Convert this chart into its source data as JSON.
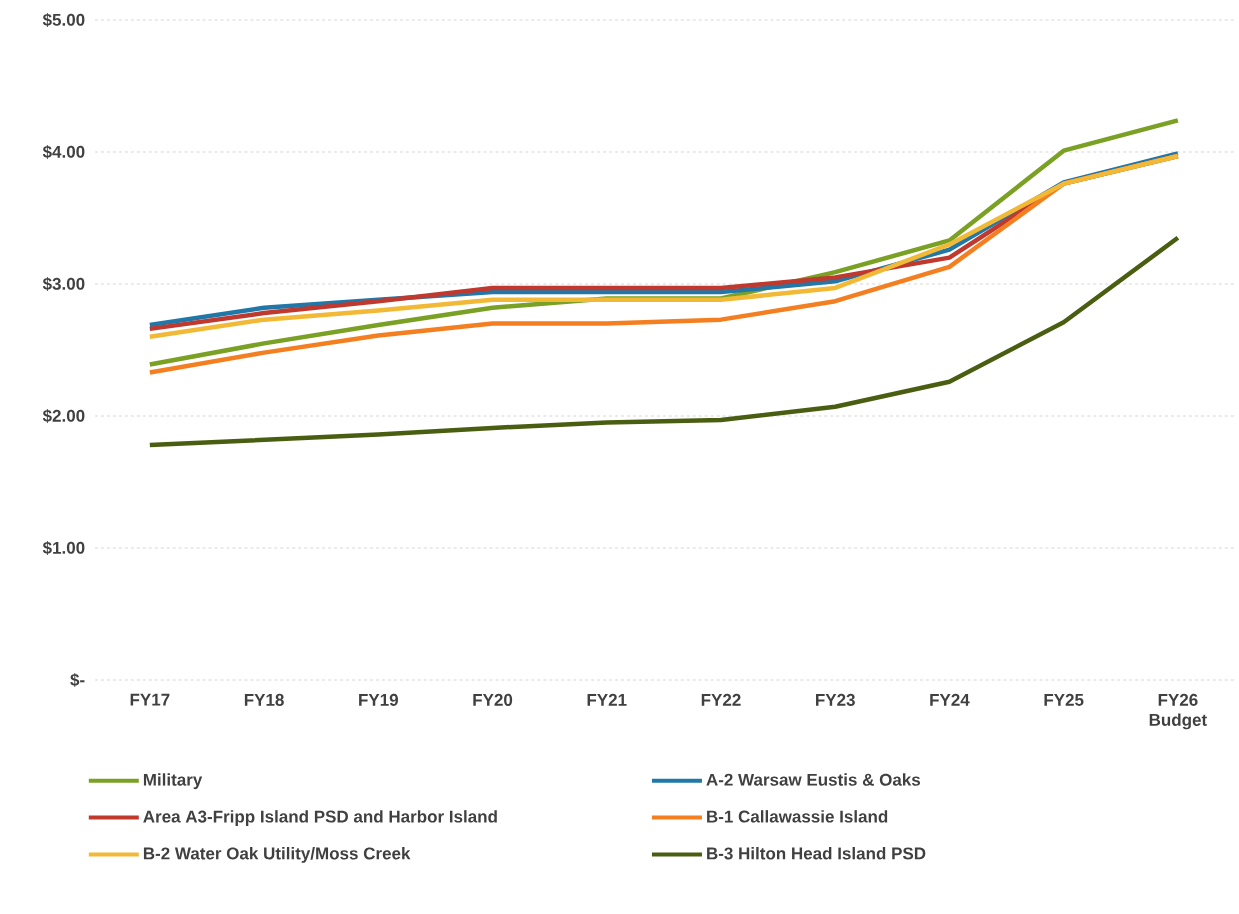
{
  "chart_data": {
    "type": "line",
    "categories": [
      "FY17",
      "FY18",
      "FY19",
      "FY20",
      "FY21",
      "FY22",
      "FY23",
      "FY24",
      "FY25",
      "FY26 Budget"
    ],
    "series": [
      {
        "name": "Military",
        "color": "#7aa024",
        "values": [
          2.39,
          2.55,
          2.69,
          2.82,
          2.89,
          2.89,
          3.09,
          3.33,
          4.01,
          4.24
        ]
      },
      {
        "name": "A-2 Warsaw Eustis & Oaks",
        "color": "#2177a8",
        "values": [
          2.69,
          2.82,
          2.88,
          2.94,
          2.94,
          2.94,
          3.02,
          3.26,
          3.77,
          3.99
        ]
      },
      {
        "name": "Area A3-Fripp Island PSD and Harbor Island",
        "color": "#c0392f",
        "values": [
          2.66,
          2.78,
          2.87,
          2.97,
          2.97,
          2.97,
          3.05,
          3.2,
          3.76,
          3.97
        ]
      },
      {
        "name": "B-1 Callawassie Island",
        "color": "#f47f20",
        "values": [
          2.33,
          2.48,
          2.61,
          2.7,
          2.7,
          2.73,
          2.87,
          3.13,
          3.76,
          3.97
        ]
      },
      {
        "name": "B-2 Water Oak Utility/Moss Creek",
        "color": "#f2b936",
        "values": [
          2.6,
          2.73,
          2.8,
          2.88,
          2.88,
          2.88,
          2.97,
          3.3,
          3.76,
          3.97
        ]
      },
      {
        "name": "B-3 Hilton Head Island PSD",
        "color": "#4a5e12",
        "values": [
          1.78,
          1.82,
          1.86,
          1.91,
          1.95,
          1.97,
          2.07,
          2.26,
          2.71,
          3.35
        ]
      }
    ],
    "ylim": [
      0,
      5
    ],
    "yticks": [
      {
        "value": 0,
        "label": "$-"
      },
      {
        "value": 1,
        "label": "$1.00"
      },
      {
        "value": 2,
        "label": "$2.00"
      },
      {
        "value": 3,
        "label": "$3.00"
      },
      {
        "value": 4,
        "label": "$4.00"
      },
      {
        "value": 5,
        "label": "$5.00"
      }
    ],
    "grid": "y",
    "legend": "bottom",
    "marker": "none",
    "line_style": "solid"
  }
}
